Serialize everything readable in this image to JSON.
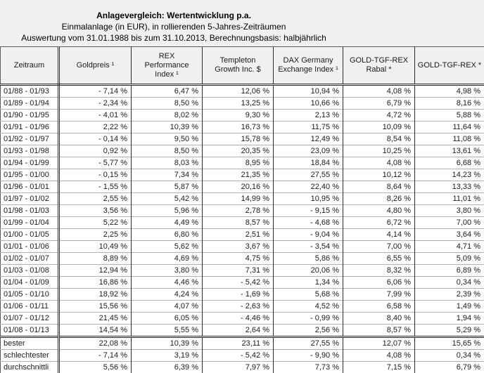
{
  "page": {
    "title_line1": "Anlagevergleich: Wertentwicklung p.a.",
    "title_line2": "Einmalanlage (in EUR), in rollierenden 5-Jahres-Zeiträumen",
    "title_line3": "Auswertung vom 31.01.1988 bis zum 31.10.2013, Berechnungsbasis: halbjährlich"
  },
  "colors": {
    "page_background": "#f0f0f0",
    "cell_background": "#ffffff",
    "grid_dark": "#2b2b2b",
    "row_separator": "#b2b2b2",
    "text": "#1a1a1a"
  },
  "table": {
    "columns": [
      "Zeitraum",
      "Goldpreis ¹",
      "REX\nPerformance\nIndex ¹",
      "Templeton\nGrowth Inc. $",
      "DAX Germany\nExchange Index ¹",
      "GOLD-TGF-REX\nRabal *",
      "GOLD-TGF-REX *"
    ],
    "rows": [
      [
        "01/88 - 01/93",
        "- 7,14 %",
        "6,47 %",
        "12,06 %",
        "10,94 %",
        "4,08 %",
        "4,98 %"
      ],
      [
        "01/89 - 01/94",
        "- 2,34 %",
        "8,50 %",
        "13,25 %",
        "10,66 %",
        "6,79 %",
        "8,16 %"
      ],
      [
        "01/90 - 01/95",
        "- 4,01 %",
        "8,02 %",
        "9,30 %",
        "2,13 %",
        "4,72 %",
        "5,88 %"
      ],
      [
        "01/91 - 01/96",
        "2,22 %",
        "10,39 %",
        "16,73 %",
        "11,75 %",
        "10,09 %",
        "11,64 %"
      ],
      [
        "01/92 - 01/97",
        "- 0,14 %",
        "9,50 %",
        "15,78 %",
        "12,49 %",
        "8,54 %",
        "11,08 %"
      ],
      [
        "01/93 - 01/98",
        "0,92 %",
        "8,50 %",
        "20,35 %",
        "23,09 %",
        "10,25 %",
        "13,61 %"
      ],
      [
        "01/94 - 01/99",
        "- 5,77 %",
        "8,03 %",
        "8,95 %",
        "18,84 %",
        "4,08 %",
        "6,68 %"
      ],
      [
        "01/95 - 01/00",
        "- 0,15 %",
        "7,34 %",
        "21,35 %",
        "27,55 %",
        "10,12 %",
        "14,23 %"
      ],
      [
        "01/96 - 01/01",
        "- 1,55 %",
        "5,87 %",
        "20,16 %",
        "22,40 %",
        "8,64 %",
        "13,33 %"
      ],
      [
        "01/97 - 01/02",
        "2,55 %",
        "5,42 %",
        "14,99 %",
        "10,95 %",
        "8,26 %",
        "11,01 %"
      ],
      [
        "01/98 - 01/03",
        "3,56 %",
        "5,96 %",
        "2,78 %",
        "- 9,15 %",
        "4,80 %",
        "3,80 %"
      ],
      [
        "01/99 - 01/04",
        "5,22 %",
        "4,49 %",
        "8,57 %",
        "- 4,68 %",
        "6,72 %",
        "7,00 %"
      ],
      [
        "01/00 - 01/05",
        "2,25 %",
        "6,80 %",
        "2,51 %",
        "- 9,04 %",
        "4,14 %",
        "3,64 %"
      ],
      [
        "01/01 - 01/06",
        "10,49 %",
        "5,62 %",
        "3,67 %",
        "- 3,54 %",
        "7,00 %",
        "4,71 %"
      ],
      [
        "01/02 - 01/07",
        "8,89 %",
        "4,69 %",
        "4,75 %",
        "5,86 %",
        "6,55 %",
        "5,09 %"
      ],
      [
        "01/03 - 01/08",
        "12,94 %",
        "3,80 %",
        "7,31 %",
        "20,06 %",
        "8,32 %",
        "6,89 %"
      ],
      [
        "01/04 - 01/09",
        "16,86 %",
        "4,46 %",
        "- 5,42 %",
        "1,34 %",
        "6,06 %",
        "0,34 %"
      ],
      [
        "01/05 - 01/10",
        "18,92 %",
        "4,24 %",
        "- 1,69 %",
        "5,68 %",
        "7,99 %",
        "2,39 %"
      ],
      [
        "01/06 - 01/11",
        "15,56 %",
        "4,07 %",
        "- 2,63 %",
        "4,52 %",
        "6,58 %",
        "1,49 %"
      ],
      [
        "01/07 - 01/12",
        "21,45 %",
        "6,05 %",
        "- 4,46 %",
        "- 0,99 %",
        "8,40 %",
        "1,94 %"
      ],
      [
        "01/08 - 01/13",
        "14,54 %",
        "5,55 %",
        "2,64 %",
        "2,56 %",
        "8,57 %",
        "5,29 %"
      ]
    ],
    "summary_rows": [
      [
        "bester",
        "22,08 %",
        "10,39 %",
        "23,11 %",
        "27,55 %",
        "12,07 %",
        "15,65 %"
      ],
      [
        "schlechtester",
        "- 7,14 %",
        "3,19 %",
        "- 5,42 %",
        "- 9,90 %",
        "4,08 %",
        "0,34 %"
      ],
      [
        "durchschnittli",
        "5,56 %",
        "6,39 %",
        "7,97 %",
        "7,73 %",
        "7,15 %",
        "6,79 %"
      ]
    ]
  }
}
